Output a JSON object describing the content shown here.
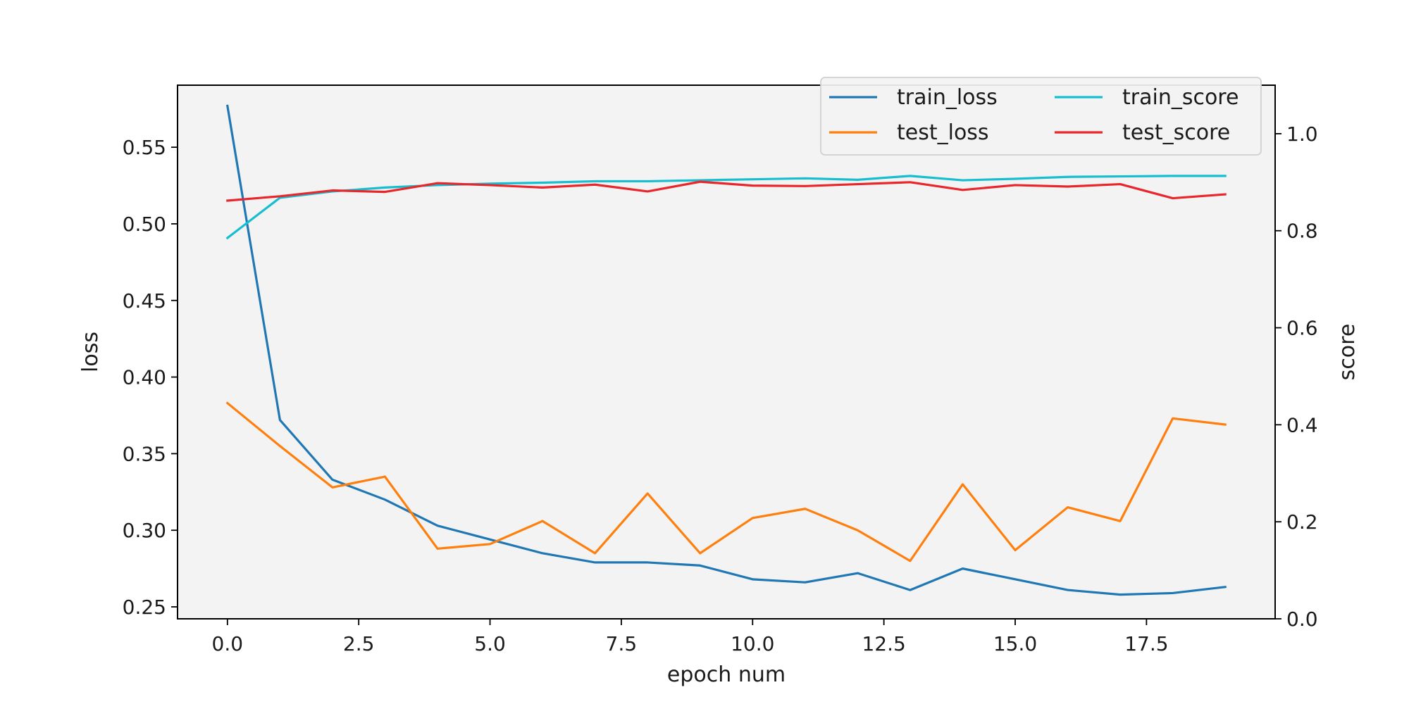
{
  "chart_data": {
    "type": "line",
    "x": [
      0,
      1,
      2,
      3,
      4,
      5,
      6,
      7,
      8,
      9,
      10,
      11,
      12,
      13,
      14,
      15,
      16,
      17,
      18,
      19
    ],
    "xlabel": "epoch num",
    "ylabel_left": "loss",
    "ylabel_right": "score",
    "xlim": [
      -0.95,
      19.95
    ],
    "ylim_left": [
      0.2422,
      0.5905
    ],
    "ylim_right": [
      0.0,
      1.1
    ],
    "x_ticks": [
      0.0,
      2.5,
      5.0,
      7.5,
      10.0,
      12.5,
      15.0,
      17.5
    ],
    "x_tick_labels": [
      "0.0",
      "2.5",
      "5.0",
      "7.5",
      "10.0",
      "12.5",
      "15.0",
      "17.5"
    ],
    "y_ticks_left": [
      0.25,
      0.3,
      0.35,
      0.4,
      0.45,
      0.5,
      0.55
    ],
    "y_tick_labels_left": [
      "0.25",
      "0.30",
      "0.35",
      "0.40",
      "0.45",
      "0.50",
      "0.55"
    ],
    "y_ticks_right": [
      0.0,
      0.2,
      0.4,
      0.6,
      0.8,
      1.0
    ],
    "y_tick_labels_right": [
      "0.0",
      "0.2",
      "0.4",
      "0.6",
      "0.8",
      "1.0"
    ],
    "grid": false,
    "plot_background": "#f3f3f3",
    "legend_placement": "top-right",
    "series": [
      {
        "name": "train_loss",
        "axis": "left",
        "color": "#1f77b4",
        "values": [
          0.577,
          0.372,
          0.333,
          0.32,
          0.303,
          0.294,
          0.285,
          0.279,
          0.279,
          0.277,
          0.268,
          0.266,
          0.272,
          0.261,
          0.275,
          0.268,
          0.261,
          0.258,
          0.259,
          0.263
        ]
      },
      {
        "name": "test_loss",
        "axis": "left",
        "color": "#ff7f0e",
        "values": [
          0.383,
          0.355,
          0.328,
          0.335,
          0.288,
          0.291,
          0.306,
          0.285,
          0.324,
          0.285,
          0.308,
          0.314,
          0.3,
          0.28,
          0.33,
          0.287,
          0.315,
          0.306,
          0.373,
          0.369
        ]
      },
      {
        "name": "train_score",
        "axis": "right",
        "color": "#17becf",
        "values": [
          0.785,
          0.868,
          0.881,
          0.889,
          0.894,
          0.897,
          0.899,
          0.902,
          0.902,
          0.904,
          0.906,
          0.908,
          0.905,
          0.913,
          0.904,
          0.907,
          0.911,
          0.912,
          0.913,
          0.913
        ]
      },
      {
        "name": "test_score",
        "axis": "right",
        "color": "#e8262b",
        "values": [
          0.862,
          0.871,
          0.883,
          0.88,
          0.898,
          0.894,
          0.889,
          0.895,
          0.881,
          0.901,
          0.893,
          0.892,
          0.896,
          0.9,
          0.884,
          0.894,
          0.891,
          0.896,
          0.867,
          0.875
        ]
      }
    ]
  }
}
